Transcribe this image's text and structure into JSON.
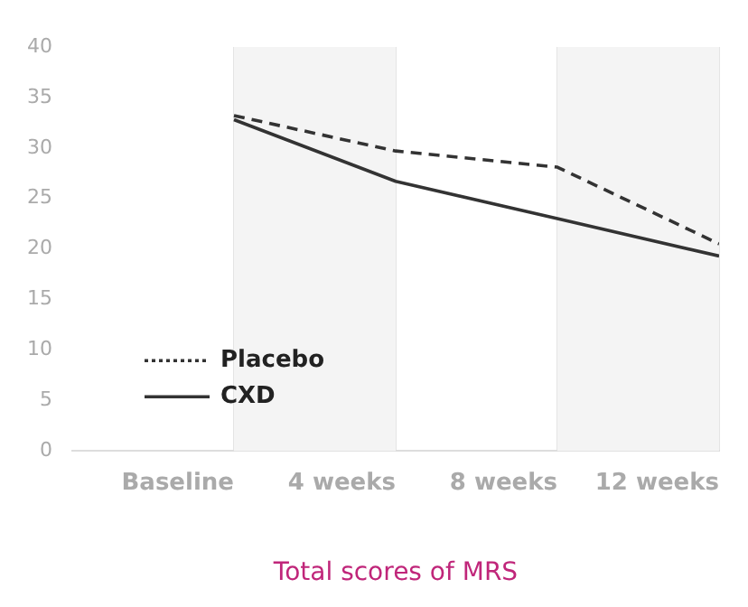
{
  "chart_data": {
    "type": "line",
    "xlabel": "Total scores of MRS",
    "categories": [
      "Baseline",
      "4 weeks",
      "8 weeks",
      "12 weeks"
    ],
    "series": [
      {
        "name": "Placebo",
        "color": "#333333",
        "line_style": "dashed",
        "values": [
          33.2,
          29.7,
          28.1,
          20.5
        ]
      },
      {
        "name": "CXD",
        "color": "#333333",
        "line_style": "solid",
        "values": [
          32.8,
          26.7,
          23.0,
          19.3
        ]
      }
    ],
    "ylim": [
      0,
      40
    ],
    "yticks": [
      0,
      5,
      10,
      15,
      20,
      25,
      30,
      35,
      40
    ],
    "grid": "x",
    "legend": "bottom left",
    "marker": "none",
    "bands": [
      {
        "axis": "x",
        "from": "Baseline",
        "to": "4 weeks",
        "color": "#f4f4f4"
      },
      {
        "axis": "x",
        "from": "8 weeks",
        "to": "12 weeks",
        "color": "#f4f4f4"
      }
    ]
  }
}
